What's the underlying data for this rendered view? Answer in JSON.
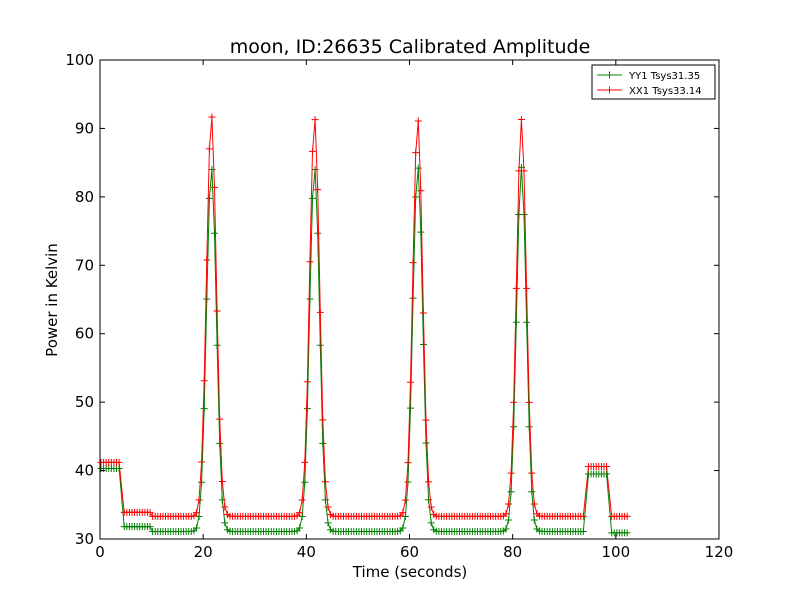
{
  "chart_data": {
    "type": "line",
    "title": "moon, ID:26635 Calibrated Amplitude",
    "xlabel": "Time (seconds)",
    "ylabel": "Power in Kelvin",
    "xlim": [
      0,
      120
    ],
    "ylim": [
      30,
      100
    ],
    "xticks": [
      0,
      20,
      40,
      60,
      80,
      100,
      120
    ],
    "yticks": [
      30,
      40,
      50,
      60,
      70,
      80,
      90,
      100
    ],
    "grid": false,
    "legend_position": "top-right",
    "series": [
      {
        "name": "YY1 Tsys31.35",
        "color": "#008000",
        "marker": "+",
        "baseline_segments": [
          {
            "t_start": 0.2,
            "t_end": 4.0,
            "value": 40.3
          },
          {
            "t_start": 4.5,
            "t_end": 10.0,
            "value": 31.8
          },
          {
            "t_start": 10.0,
            "t_end": 94.0,
            "value": 31.1
          },
          {
            "t_start": 94.3,
            "t_end": 98.5,
            "value": 39.5
          },
          {
            "t_start": 99.0,
            "t_end": 102.5,
            "value": 30.9
          }
        ],
        "peaks": [
          {
            "time": 21.6,
            "value": 84.3
          },
          {
            "time": 41.6,
            "value": 84.3
          },
          {
            "time": 61.6,
            "value": 84.5
          },
          {
            "time": 81.7,
            "value": 84.3
          }
        ]
      },
      {
        "name": "XX1 Tsys33.14",
        "color": "#ff0000",
        "marker": "+",
        "baseline_segments": [
          {
            "t_start": 0.2,
            "t_end": 4.0,
            "value": 41.2
          },
          {
            "t_start": 4.5,
            "t_end": 10.0,
            "value": 33.9
          },
          {
            "t_start": 10.0,
            "t_end": 94.0,
            "value": 33.3
          },
          {
            "t_start": 94.3,
            "t_end": 98.5,
            "value": 40.6
          },
          {
            "t_start": 99.0,
            "t_end": 102.5,
            "value": 33.3
          }
        ],
        "peaks": [
          {
            "time": 21.6,
            "value": 92.0
          },
          {
            "time": 41.6,
            "value": 91.6
          },
          {
            "time": 61.6,
            "value": 91.4
          },
          {
            "time": 81.7,
            "value": 91.3
          }
        ]
      }
    ]
  }
}
